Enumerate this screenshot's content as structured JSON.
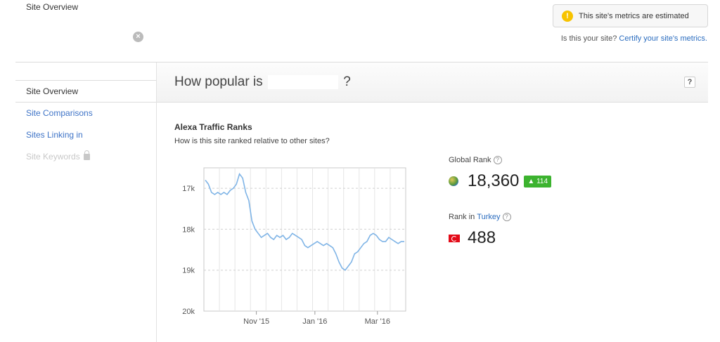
{
  "top": {
    "title": "Site Overview",
    "clear_icon": "close-circle-icon",
    "estimate_notice": "This site's metrics are estimated",
    "certify_prefix": "Is this your site?",
    "certify_link": "Certify your site's metrics."
  },
  "sidebar": {
    "items": [
      {
        "label": "Site Overview",
        "state": "active"
      },
      {
        "label": "Site Comparisons",
        "state": "link"
      },
      {
        "label": "Sites Linking in",
        "state": "link"
      },
      {
        "label": "Site Keywords",
        "state": "disabled",
        "icon": "lock-icon"
      }
    ]
  },
  "main": {
    "heading_prefix": "How popular is",
    "heading_suffix": "?",
    "help_label": "?",
    "section_title": "Alexa Traffic Ranks",
    "section_subtitle": "How is this site ranked relative to other sites?"
  },
  "ranks": {
    "global_label": "Global Rank",
    "global_value": "18,360",
    "global_delta": "114",
    "global_delta_color": "#3cb32f",
    "country_label_prefix": "Rank in",
    "country_name": "Turkey",
    "country_value": "488",
    "help_icon": "question-circle-icon"
  },
  "colors": {
    "accent_link": "#2a6cbf",
    "line": "#7fb4e6"
  },
  "chart_data": {
    "type": "line",
    "y_reversed": true,
    "ylim": [
      16500,
      20000
    ],
    "yticks": [
      {
        "value": 17000,
        "label": "17k"
      },
      {
        "value": 18000,
        "label": "18k"
      },
      {
        "value": 19000,
        "label": "19k"
      },
      {
        "value": 20000,
        "label": "20k"
      }
    ],
    "x_tick_labels": [
      "Nov '15",
      "Jan '16",
      "Mar '16"
    ],
    "series": [
      {
        "values": [
          16800,
          16900,
          17100,
          17150,
          17100,
          17150,
          17100,
          17150,
          17050,
          17000,
          16900,
          16650,
          16750,
          17100,
          17300,
          17800,
          18000,
          18100,
          18200,
          18150,
          18100,
          18200,
          18250,
          18150,
          18200,
          18150,
          18250,
          18200,
          18100,
          18150,
          18200,
          18250,
          18400,
          18450,
          18400,
          18350,
          18300,
          18350,
          18400,
          18350,
          18400,
          18450,
          18600,
          18800,
          18950,
          19000,
          18900,
          18800,
          18600,
          18550,
          18450,
          18350,
          18300,
          18150,
          18100,
          18150,
          18250,
          18300,
          18300,
          18200,
          18250,
          18300,
          18350,
          18300,
          18300
        ]
      }
    ]
  }
}
